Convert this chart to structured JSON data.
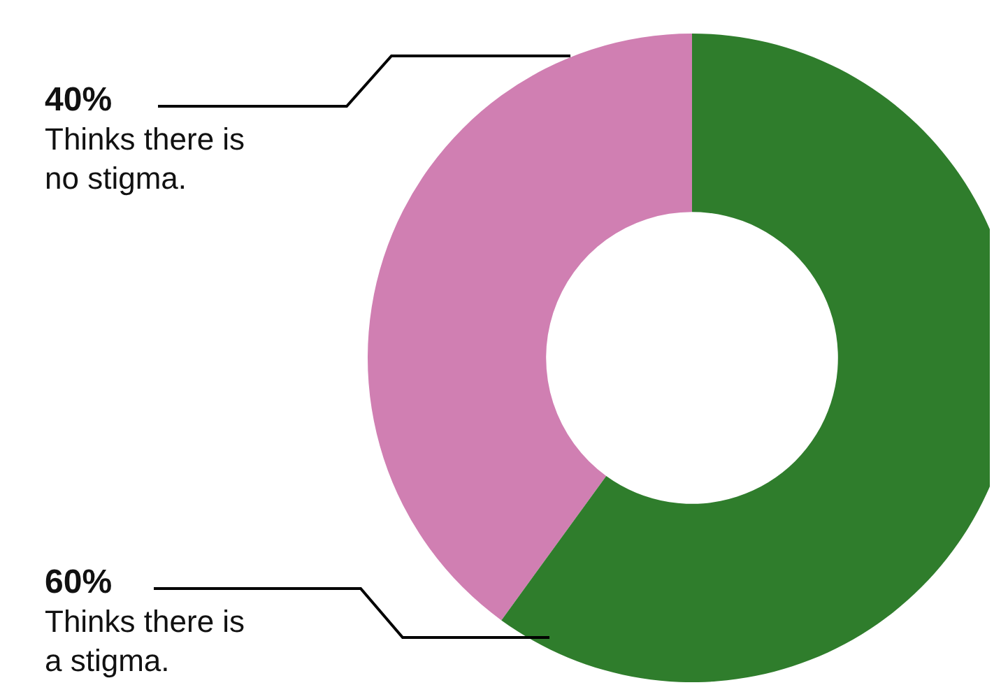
{
  "chart_data": {
    "type": "donut",
    "categories": [
      "Thinks there is no stigma.",
      "Thinks there is a stigma."
    ],
    "values": [
      40,
      60
    ],
    "value_labels": [
      "40%",
      "60%"
    ],
    "colors": [
      "#d07fb2",
      "#2f7d2c"
    ]
  }
}
